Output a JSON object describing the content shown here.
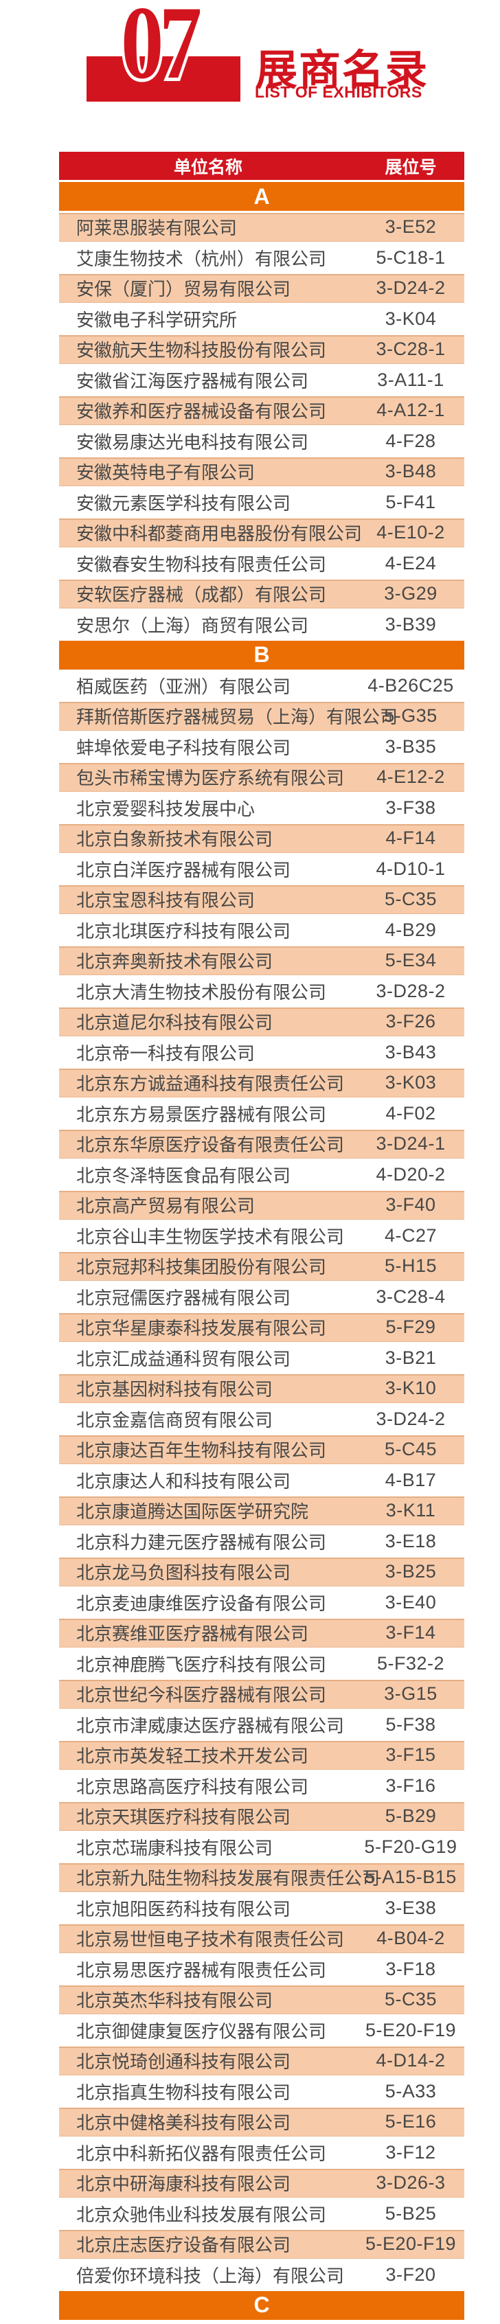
{
  "header": {
    "number": "07",
    "title_cn": "展商名录",
    "title_en": "LIST OF EXHIBITORS"
  },
  "colors": {
    "red": "#d2141e",
    "orange": "#eb6e04",
    "peach": "#f7cba9",
    "text": "#474747"
  },
  "table": {
    "headers": {
      "name": "单位名称",
      "booth": "展位号"
    },
    "sections": [
      {
        "letter": "A",
        "zebra_start": "peach",
        "rows": [
          {
            "name": "阿莱思服装有限公司",
            "booth": "3-E52"
          },
          {
            "name": "艾康生物技术（杭州）有限公司",
            "booth": "5-C18-1"
          },
          {
            "name": "安保（厦门）贸易有限公司",
            "booth": "3-D24-2"
          },
          {
            "name": "安徽电子科学研究所",
            "booth": "3-K04"
          },
          {
            "name": "安徽航天生物科技股份有限公司",
            "booth": "3-C28-1"
          },
          {
            "name": "安徽省江海医疗器械有限公司",
            "booth": "3-A11-1"
          },
          {
            "name": "安徽养和医疗器械设备有限公司",
            "booth": "4-A12-1"
          },
          {
            "name": "安徽易康达光电科技有限公司",
            "booth": "4-F28"
          },
          {
            "name": "安徽英特电子有限公司",
            "booth": "3-B48"
          },
          {
            "name": "安徽元素医学科技有限公司",
            "booth": "5-F41"
          },
          {
            "name": "安徽中科都菱商用电器股份有限公司",
            "booth": "4-E10-2"
          },
          {
            "name": "安徽春安生物科技有限责任公司",
            "booth": "4-E24"
          },
          {
            "name": "安软医疗器械（成都）有限公司",
            "booth": "3-G29"
          },
          {
            "name": "安思尔（上海）商贸有限公司",
            "booth": "3-B39"
          }
        ]
      },
      {
        "letter": "B",
        "zebra_start": "white",
        "rows": [
          {
            "name": "栢威医药（亚洲）有限公司",
            "booth": "4-B26C25"
          },
          {
            "name": "拜斯倍斯医疗器械贸易（上海）有限公司",
            "booth": "5-G35"
          },
          {
            "name": "蚌埠依爱电子科技有限公司",
            "booth": "3-B35"
          },
          {
            "name": "包头市稀宝博为医疗系统有限公司",
            "booth": "4-E12-2"
          },
          {
            "name": "北京爱婴科技发展中心",
            "booth": "3-F38"
          },
          {
            "name": "北京白象新技术有限公司",
            "booth": "4-F14"
          },
          {
            "name": "北京白洋医疗器械有限公司",
            "booth": "4-D10-1"
          },
          {
            "name": "北京宝恩科技有限公司",
            "booth": "5-C35"
          },
          {
            "name": "北京北琪医疗科技有限公司",
            "booth": "4-B29"
          },
          {
            "name": "北京奔奥新技术有限公司",
            "booth": "5-E34"
          },
          {
            "name": "北京大清生物技术股份有限公司",
            "booth": "3-D28-2"
          },
          {
            "name": "北京道尼尔科技有限公司",
            "booth": "3-F26"
          },
          {
            "name": "北京帝一科技有限公司",
            "booth": "3-B43"
          },
          {
            "name": "北京东方诚益通科技有限责任公司",
            "booth": "3-K03"
          },
          {
            "name": "北京东方易景医疗器械有限公司",
            "booth": "4-F02"
          },
          {
            "name": "北京东华原医疗设备有限责任公司",
            "booth": "3-D24-1"
          },
          {
            "name": "北京冬泽特医食品有限公司",
            "booth": "4-D20-2"
          },
          {
            "name": "北京高产贸易有限公司",
            "booth": "3-F40"
          },
          {
            "name": "北京谷山丰生物医学技术有限公司",
            "booth": "4-C27"
          },
          {
            "name": "北京冠邦科技集团股份有限公司",
            "booth": "5-H15"
          },
          {
            "name": "北京冠儒医疗器械有限公司",
            "booth": "3-C28-4"
          },
          {
            "name": "北京华星康泰科技发展有限公司",
            "booth": "5-F29"
          },
          {
            "name": "北京汇成益通科贸有限公司",
            "booth": "3-B21"
          },
          {
            "name": "北京基因树科技有限公司",
            "booth": "3-K10"
          },
          {
            "name": "北京金嘉信商贸有限公司",
            "booth": "3-D24-2"
          },
          {
            "name": "北京康达百年生物科技有限公司",
            "booth": "5-C45"
          },
          {
            "name": "北京康达人和科技有限公司",
            "booth": "4-B17"
          },
          {
            "name": "北京康道腾达国际医学研究院",
            "booth": "3-K11"
          },
          {
            "name": "北京科力建元医疗器械有限公司",
            "booth": "3-E18"
          },
          {
            "name": "北京龙马负图科技有限公司",
            "booth": "3-B25"
          },
          {
            "name": "北京麦迪康维医疗设备有限公司",
            "booth": "3-E40"
          },
          {
            "name": "北京赛维亚医疗器械有限公司",
            "booth": "3-F14"
          },
          {
            "name": "北京神鹿腾飞医疗科技有限公司",
            "booth": "5-F32-2"
          },
          {
            "name": "北京世纪今科医疗器械有限公司",
            "booth": "3-G15"
          },
          {
            "name": "北京市津威康达医疗器械有限公司",
            "booth": "5-F38"
          },
          {
            "name": "北京市英发轻工技术开发公司",
            "booth": "3-F15"
          },
          {
            "name": "北京思路高医疗科技有限公司",
            "booth": "3-F16"
          },
          {
            "name": "北京天琪医疗科技有限公司",
            "booth": "5-B29"
          },
          {
            "name": "北京芯瑞康科技有限公司",
            "booth": "5-F20-G19"
          },
          {
            "name": "北京新九陆生物科技发展有限责任公司",
            "booth": "5-A15-B15"
          },
          {
            "name": "北京旭阳医药科技有限公司",
            "booth": "3-E38"
          },
          {
            "name": "北京易世恒电子技术有限责任公司",
            "booth": "4-B04-2"
          },
          {
            "name": "北京易思医疗器械有限责任公司",
            "booth": "3-F18"
          },
          {
            "name": "北京英杰华科技有限公司",
            "booth": "5-C35"
          },
          {
            "name": "北京御健康复医疗仪器有限公司",
            "booth": "5-E20-F19"
          },
          {
            "name": "北京悦琦创通科技有限公司",
            "booth": "4-D14-2"
          },
          {
            "name": "北京指真生物科技有限公司",
            "booth": "5-A33"
          },
          {
            "name": "北京中健格美科技有限公司",
            "booth": "5-E16"
          },
          {
            "name": "北京中科新拓仪器有限责任公司",
            "booth": "3-F12"
          },
          {
            "name": "北京中研海康科技有限公司",
            "booth": "3-D26-3"
          },
          {
            "name": "北京众驰伟业科技发展有限公司",
            "booth": "5-B25"
          },
          {
            "name": "北京庄志医疗设备有限公司",
            "booth": "5-E20-F19"
          },
          {
            "name": "倍爱你环境科技（上海）有限公司",
            "booth": "3-F20"
          }
        ]
      },
      {
        "letter": "C",
        "zebra_start": "peach",
        "rows": []
      }
    ]
  }
}
